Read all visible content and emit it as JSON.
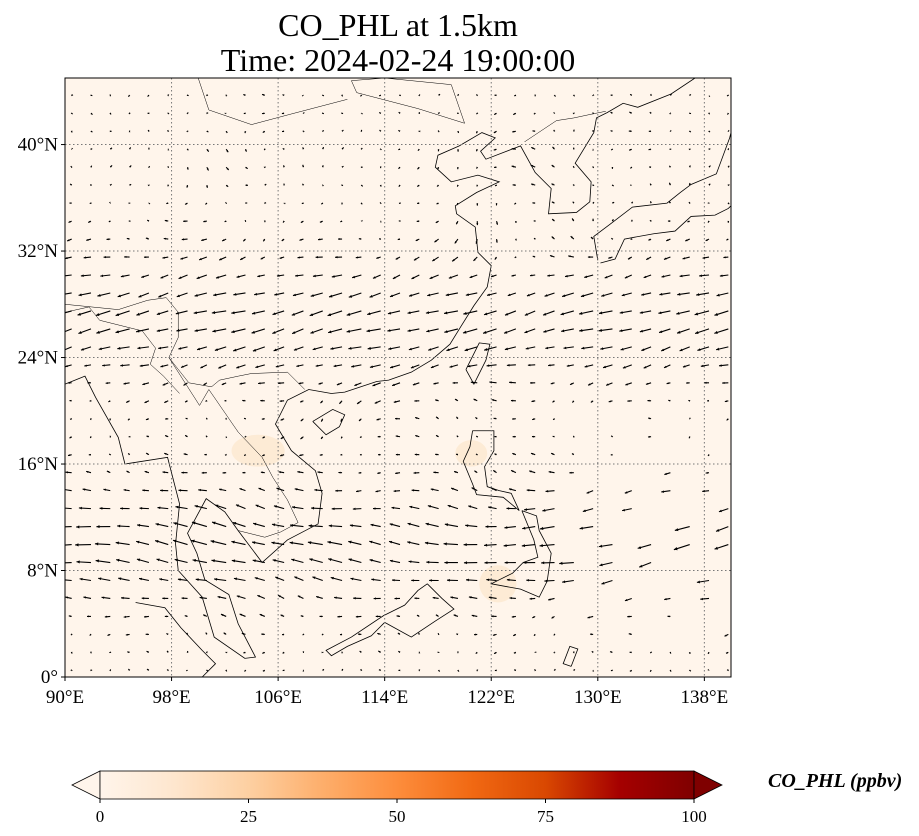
{
  "title": {
    "line1": "CO_PHL at 1.5km",
    "line2": "Time: 2024-02-24 19:00:00"
  },
  "map": {
    "projection": "PlateCarree",
    "lon_range": [
      90,
      140
    ],
    "lat_range": [
      0,
      45
    ],
    "lon_ticks": [
      {
        "value": 90,
        "label": "90°E"
      },
      {
        "value": 98,
        "label": "98°E"
      },
      {
        "value": 106,
        "label": "106°E"
      },
      {
        "value": 114,
        "label": "114°E"
      },
      {
        "value": 122,
        "label": "122°E"
      },
      {
        "value": 130,
        "label": "130°E"
      },
      {
        "value": 138,
        "label": "138°E"
      }
    ],
    "lat_ticks": [
      {
        "value": 0,
        "label": "0°"
      },
      {
        "value": 8,
        "label": "8°N"
      },
      {
        "value": 16,
        "label": "16°N"
      },
      {
        "value": 24,
        "label": "24°N"
      },
      {
        "value": 32,
        "label": "32°N"
      },
      {
        "value": 40,
        "label": "40°N"
      }
    ],
    "gridlines": "dotted",
    "background_color": "#fff5eb",
    "features": [
      "coastlines",
      "country-borders",
      "wind-vectors"
    ]
  },
  "colorbar": {
    "label": "CO_PHL (ppbv)",
    "min": 0,
    "max": 100,
    "ticks": [
      {
        "value": 0,
        "label": "0"
      },
      {
        "value": 25,
        "label": "25"
      },
      {
        "value": 50,
        "label": "50"
      },
      {
        "value": 75,
        "label": "75"
      },
      {
        "value": 100,
        "label": "100"
      }
    ],
    "extend": "both",
    "colormap": [
      "#fff5eb",
      "#fee6ce",
      "#fdd0a2",
      "#fdae6b",
      "#fd8d3c",
      "#f16913",
      "#d94801",
      "#a50000",
      "#7f0000"
    ]
  }
}
